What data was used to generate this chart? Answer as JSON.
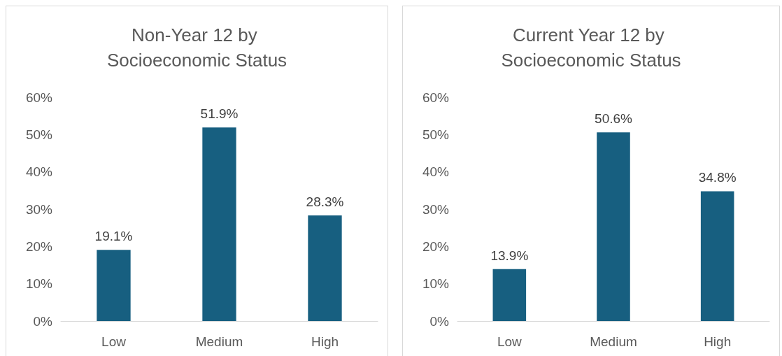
{
  "chart_data": [
    {
      "type": "bar",
      "title": "Non-Year 12 by Socioeconomic Status",
      "categories": [
        "Low",
        "Medium",
        "High"
      ],
      "values": [
        19.1,
        51.9,
        28.3
      ],
      "color": "#175f80",
      "value_labels": [
        "19.1%",
        "51.9%",
        "28.3%"
      ],
      "ylim": [
        0,
        60
      ],
      "yticks": [
        {
          "value": 0,
          "label": "0%"
        },
        {
          "value": 10,
          "label": "10%"
        },
        {
          "value": 20,
          "label": "20%"
        },
        {
          "value": 30,
          "label": "30%"
        },
        {
          "value": 40,
          "label": "40%"
        },
        {
          "value": 50,
          "label": "50%"
        },
        {
          "value": 60,
          "label": "60%"
        }
      ],
      "grid": false
    },
    {
      "type": "bar",
      "title": "Current Year 12 by Socioeconomic Status",
      "categories": [
        "Low",
        "Medium",
        "High"
      ],
      "values": [
        13.9,
        50.6,
        34.8
      ],
      "color": "#175f80",
      "value_labels": [
        "13.9%",
        "50.6%",
        "34.8%"
      ],
      "ylim": [
        0,
        60
      ],
      "yticks": [
        {
          "value": 0,
          "label": "0%"
        },
        {
          "value": 10,
          "label": "10%"
        },
        {
          "value": 20,
          "label": "20%"
        },
        {
          "value": 30,
          "label": "30%"
        },
        {
          "value": 40,
          "label": "40%"
        },
        {
          "value": 50,
          "label": "50%"
        },
        {
          "value": 60,
          "label": "60%"
        }
      ],
      "grid": false
    }
  ]
}
